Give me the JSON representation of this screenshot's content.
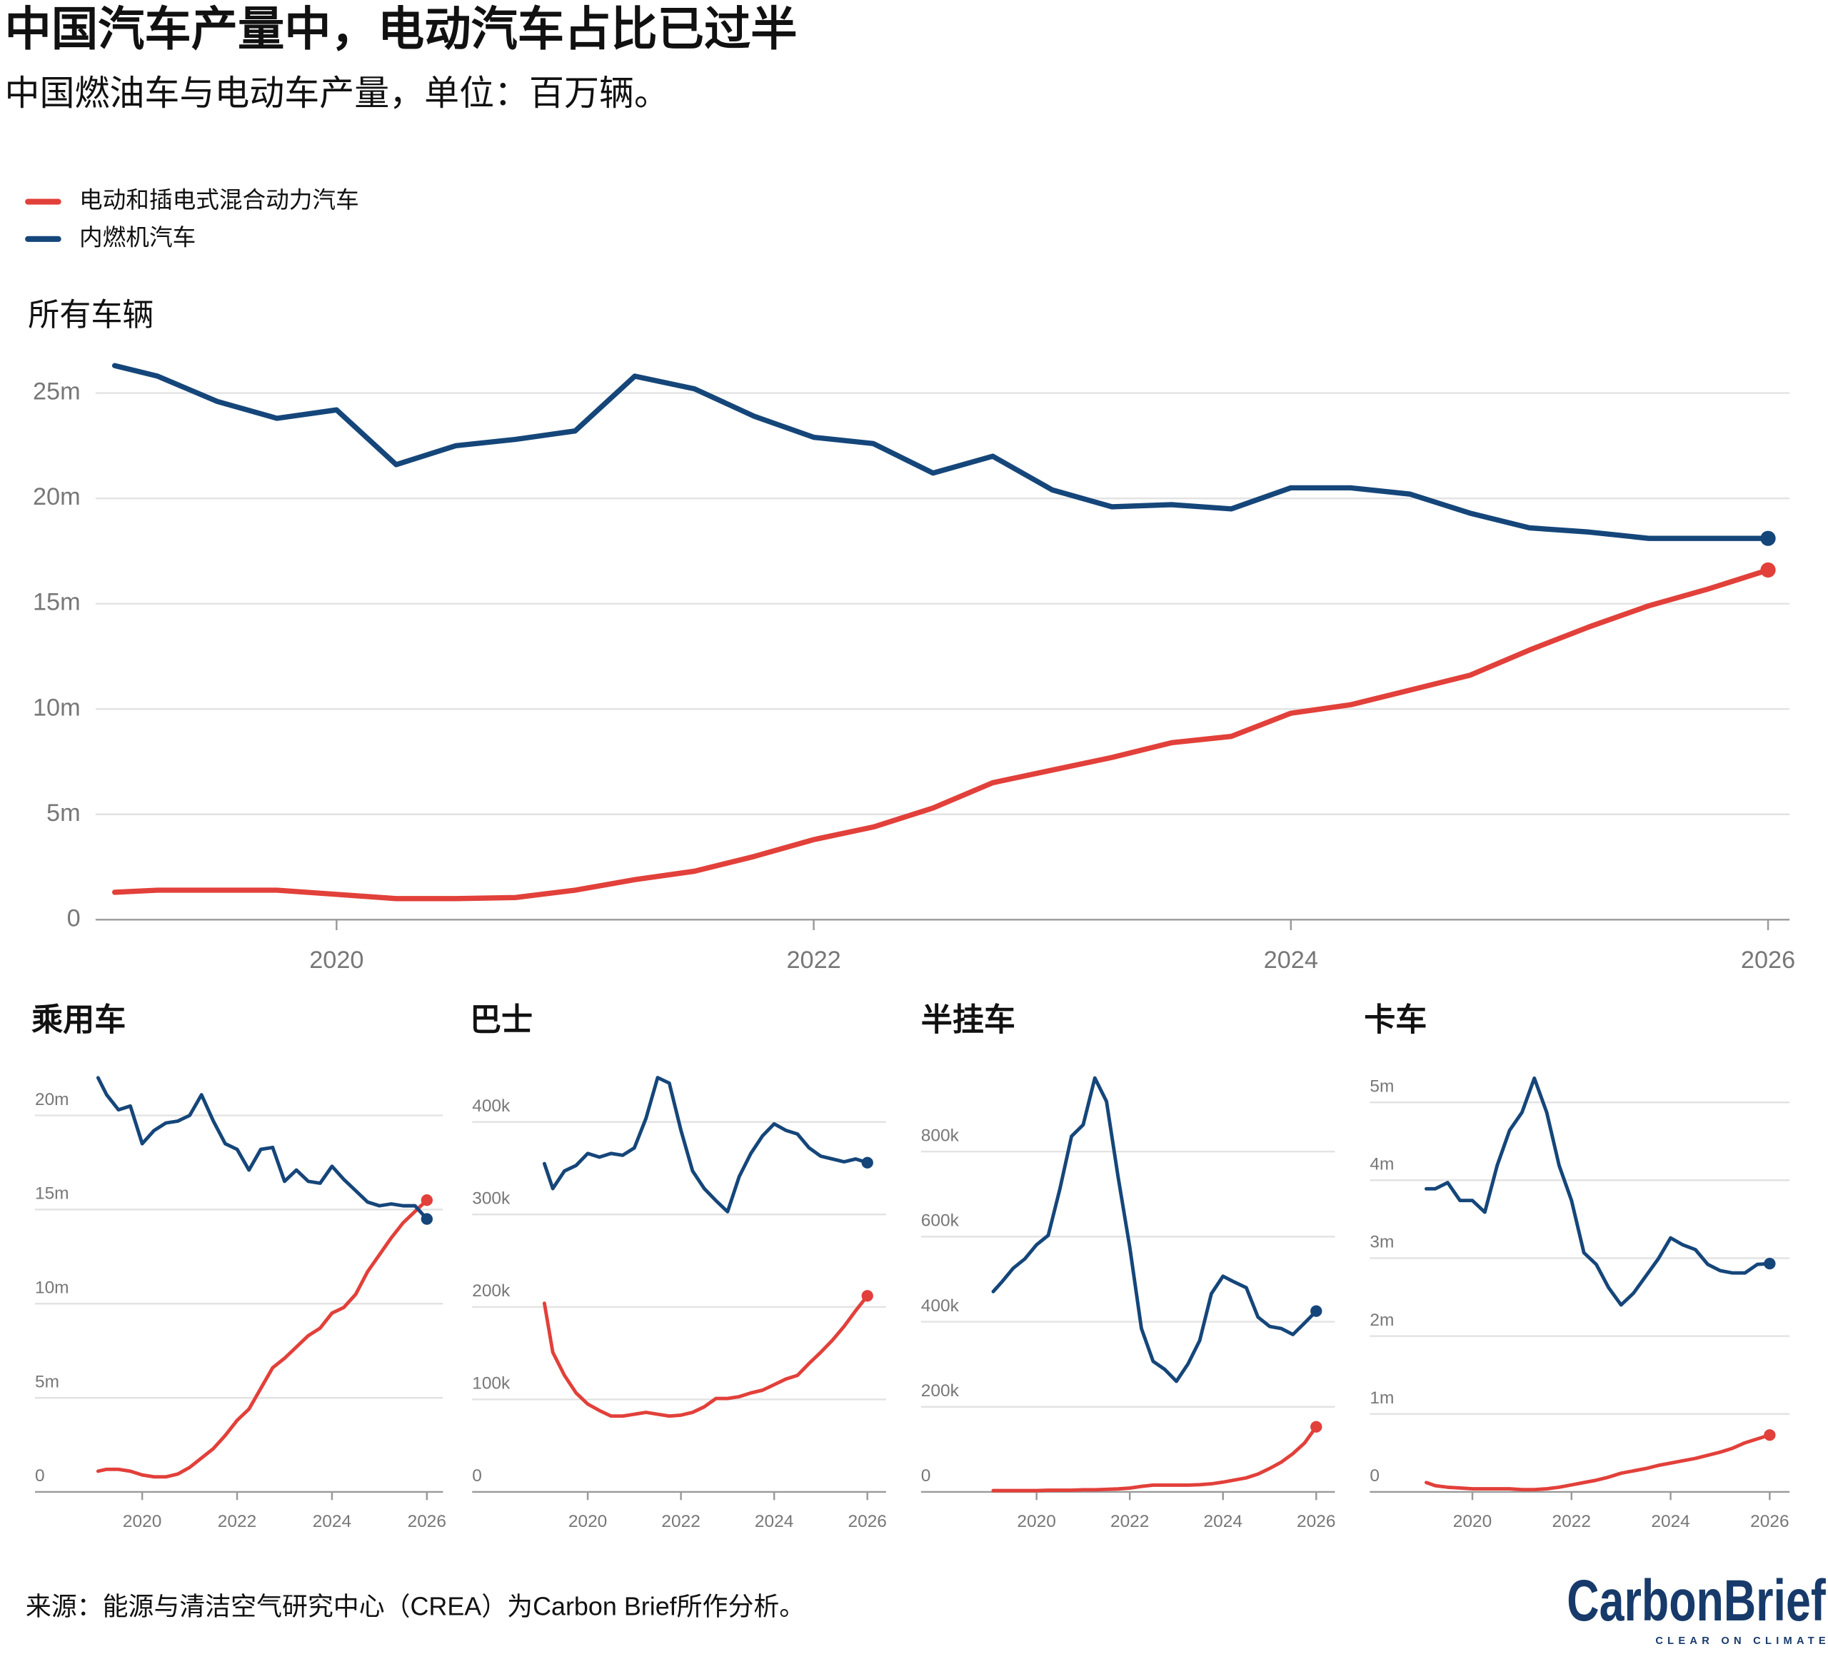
{
  "title": "中国汽车产量中，电动汽车占比已过半",
  "subtitle": "中国燃油车与电动车产量，单位：百万辆。",
  "source": "来源：能源与清洁空气研究中心（CREA）为Carbon Brief所作分析。",
  "logo": {
    "name": "CarbonBrief",
    "tagline": "CLEAR ON CLIMATE"
  },
  "chart_data": [
    {
      "type": "line",
      "title": "所有车辆",
      "legend": "top-left",
      "grid": true,
      "x": [
        2019.07,
        2019.25,
        2019.5,
        2019.75,
        2020,
        2020.25,
        2020.5,
        2020.75,
        2021,
        2021.25,
        2021.5,
        2021.75,
        2022,
        2022.25,
        2022.5,
        2022.75,
        2023,
        2023.25,
        2023.5,
        2023.75,
        2024,
        2024.25,
        2024.5,
        2024.75,
        2025,
        2025.25,
        2025.5,
        2025.75,
        2026
      ],
      "xlim": [
        2018.99,
        2026.09
      ],
      "xticks": [
        2020,
        2022,
        2024,
        2026
      ],
      "ylim": [
        0,
        27
      ],
      "yticks": [
        0,
        {
          "value": 5,
          "label": "5m"
        },
        {
          "value": 10,
          "label": "10m"
        },
        {
          "value": 15,
          "label": "15m"
        },
        {
          "value": 20,
          "label": "20m"
        },
        {
          "value": 25,
          "label": "25m"
        }
      ],
      "series": [
        {
          "name": "电动和插电式混合动力汽车",
          "color": "#e2403a",
          "values": [
            1.3,
            1.4,
            1.4,
            1.4,
            1.2,
            1.0,
            1.0,
            1.05,
            1.4,
            1.9,
            2.3,
            3.0,
            3.8,
            4.4,
            5.3,
            6.5,
            7.1,
            7.7,
            8.4,
            8.7,
            9.8,
            10.2,
            10.9,
            11.6,
            12.8,
            13.9,
            14.9,
            15.7,
            16.6
          ]
        },
        {
          "name": "内燃机汽车",
          "color": "#15467a",
          "values": [
            26.3,
            25.8,
            24.6,
            23.8,
            24.2,
            21.6,
            22.5,
            22.8,
            23.2,
            25.8,
            25.2,
            23.9,
            22.9,
            22.6,
            21.2,
            22.0,
            20.4,
            19.6,
            19.7,
            19.5,
            20.5,
            20.5,
            20.2,
            19.3,
            18.6,
            18.4,
            18.1,
            18.1,
            18.1
          ]
        }
      ]
    },
    {
      "type": "line",
      "title": "乘用车",
      "grid": true,
      "x": [
        2019.07,
        2019.25,
        2019.5,
        2019.75,
        2020,
        2020.25,
        2020.5,
        2020.75,
        2021,
        2021.25,
        2021.5,
        2021.75,
        2022,
        2022.25,
        2022.5,
        2022.75,
        2023,
        2023.25,
        2023.5,
        2023.75,
        2024,
        2024.25,
        2024.5,
        2024.75,
        2025,
        2025.25,
        2025.5,
        2025.75,
        2026
      ],
      "xlim": [
        2017.74,
        2026.34
      ],
      "xticks": [
        2020,
        2022,
        2024,
        2026
      ],
      "ylim": [
        0,
        22.6
      ],
      "yticks": [
        0,
        {
          "value": 5,
          "label": "5m"
        },
        {
          "value": 10,
          "label": "10m"
        },
        {
          "value": 15,
          "label": "15m"
        },
        {
          "value": 20,
          "label": "20m"
        }
      ],
      "series": [
        {
          "color": "#e2403a",
          "values": [
            1.1,
            1.2,
            1.2,
            1.1,
            0.9,
            0.8,
            0.8,
            0.95,
            1.3,
            1.8,
            2.3,
            3.0,
            3.8,
            4.4,
            5.5,
            6.6,
            7.1,
            7.7,
            8.3,
            8.7,
            9.5,
            9.8,
            10.5,
            11.7,
            12.6,
            13.5,
            14.3,
            14.9,
            15.5
          ]
        },
        {
          "color": "#15467a",
          "values": [
            22.0,
            21.1,
            20.3,
            20.5,
            18.5,
            19.2,
            19.6,
            19.7,
            20.0,
            21.1,
            19.7,
            18.5,
            18.2,
            17.1,
            18.2,
            18.3,
            16.5,
            17.1,
            16.5,
            16.4,
            17.3,
            16.6,
            16.0,
            15.4,
            15.2,
            15.3,
            15.2,
            15.2,
            14.5
          ]
        }
      ]
    },
    {
      "type": "line",
      "title": "巴士",
      "grid": true,
      "x": [
        2019.07,
        2019.25,
        2019.5,
        2019.75,
        2020,
        2020.25,
        2020.5,
        2020.75,
        2021,
        2021.25,
        2021.5,
        2021.75,
        2022,
        2022.25,
        2022.5,
        2022.75,
        2023,
        2023.25,
        2023.5,
        2023.75,
        2024,
        2024.25,
        2024.5,
        2024.75,
        2025,
        2025.25,
        2025.5,
        2025.75,
        2026
      ],
      "xlim": [
        2017.52,
        2026.4
      ],
      "xticks": [
        2020,
        2022,
        2024,
        2026
      ],
      "ylim": [
        0,
        460000
      ],
      "yticks": [
        0,
        {
          "value": 100000,
          "label": "100k"
        },
        {
          "value": 200000,
          "label": "200k"
        },
        {
          "value": 300000,
          "label": "300k"
        },
        {
          "value": 400000,
          "label": "400k"
        }
      ],
      "series": [
        {
          "color": "#e2403a",
          "values": [
            204000,
            151000,
            126000,
            107000,
            95000,
            88000,
            82000,
            82000,
            84000,
            86000,
            84000,
            82000,
            83000,
            86000,
            92000,
            101000,
            101000,
            103000,
            107000,
            110000,
            116000,
            122000,
            126000,
            139000,
            151000,
            164000,
            179000,
            196000,
            212000
          ]
        },
        {
          "color": "#15467a",
          "values": [
            355000,
            328000,
            347000,
            353000,
            366000,
            362000,
            366000,
            364000,
            372000,
            404000,
            448000,
            442000,
            391000,
            347000,
            328000,
            315000,
            303000,
            341000,
            366000,
            385000,
            398000,
            391000,
            387000,
            372000,
            363000,
            360000,
            357000,
            360000,
            356000
          ]
        }
      ]
    },
    {
      "type": "line",
      "title": "半挂车",
      "grid": true,
      "x": [
        2019.07,
        2019.25,
        2019.5,
        2019.75,
        2020,
        2020.25,
        2020.5,
        2020.75,
        2021,
        2021.25,
        2021.5,
        2021.75,
        2022,
        2022.25,
        2022.5,
        2022.75,
        2023,
        2023.25,
        2023.5,
        2023.75,
        2024,
        2024.25,
        2024.5,
        2024.75,
        2025,
        2025.25,
        2025.5,
        2025.75,
        2026
      ],
      "xlim": [
        2017.52,
        2026.4
      ],
      "xticks": [
        2020,
        2022,
        2024,
        2026
      ],
      "ylim": [
        0,
        1000000
      ],
      "yticks": [
        0,
        {
          "value": 200000,
          "label": "200k"
        },
        {
          "value": 400000,
          "label": "400k"
        },
        {
          "value": 600000,
          "label": "600k"
        },
        {
          "value": 800000,
          "label": "800k"
        }
      ],
      "series": [
        {
          "color": "#e2403a",
          "values": [
            3000,
            3000,
            3000,
            3000,
            3000,
            4000,
            4000,
            4000,
            5000,
            5000,
            6000,
            7000,
            9000,
            13000,
            16000,
            16000,
            16000,
            16000,
            17000,
            19000,
            23000,
            28000,
            33000,
            42000,
            55000,
            70000,
            90000,
            115000,
            153000
          ]
        },
        {
          "color": "#15467a",
          "values": [
            471000,
            493000,
            526000,
            548000,
            581000,
            603000,
            712000,
            836000,
            863000,
            973000,
            918000,
            740000,
            575000,
            384000,
            307000,
            288000,
            260000,
            301000,
            356000,
            466000,
            507000,
            493000,
            480000,
            411000,
            389000,
            384000,
            370000,
            397000,
            425000
          ]
        }
      ]
    },
    {
      "type": "line",
      "title": "卡车",
      "grid": true,
      "x": [
        2019.07,
        2019.25,
        2019.5,
        2019.75,
        2020,
        2020.25,
        2020.5,
        2020.75,
        2021,
        2021.25,
        2021.5,
        2021.75,
        2022,
        2022.25,
        2022.5,
        2022.75,
        2023,
        2023.25,
        2023.5,
        2023.75,
        2024,
        2024.25,
        2024.5,
        2024.75,
        2025,
        2025.25,
        2025.5,
        2025.75,
        2026
      ],
      "xlim": [
        2017.93,
        2026.4
      ],
      "xticks": [
        2020,
        2022,
        2024,
        2026
      ],
      "ylim": [
        0,
        5.46
      ],
      "yticks": [
        0,
        {
          "value": 1,
          "label": "1m"
        },
        {
          "value": 2,
          "label": "2m"
        },
        {
          "value": 3,
          "label": "3m"
        },
        {
          "value": 4,
          "label": "4m"
        },
        {
          "value": 5,
          "label": "5m"
        }
      ],
      "series": [
        {
          "color": "#e2403a",
          "values": [
            0.12,
            0.08,
            0.06,
            0.05,
            0.04,
            0.04,
            0.04,
            0.04,
            0.03,
            0.03,
            0.04,
            0.06,
            0.09,
            0.12,
            0.15,
            0.19,
            0.24,
            0.27,
            0.3,
            0.34,
            0.37,
            0.4,
            0.43,
            0.47,
            0.51,
            0.56,
            0.63,
            0.68,
            0.73
          ]
        },
        {
          "color": "#15467a",
          "values": [
            3.89,
            3.89,
            3.97,
            3.74,
            3.74,
            3.59,
            4.19,
            4.64,
            4.87,
            5.31,
            4.87,
            4.19,
            3.74,
            3.07,
            2.92,
            2.62,
            2.4,
            2.55,
            2.77,
            2.99,
            3.26,
            3.17,
            3.11,
            2.92,
            2.84,
            2.81,
            2.81,
            2.92,
            2.93
          ]
        }
      ]
    }
  ]
}
